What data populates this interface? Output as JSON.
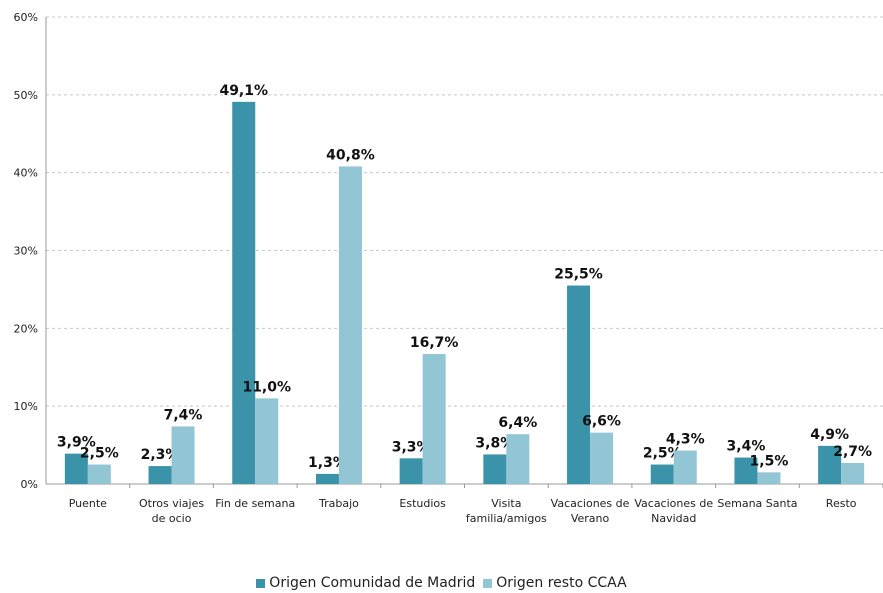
{
  "chart_data": {
    "type": "bar",
    "categories": [
      [
        "Puente"
      ],
      [
        "Otros viajes",
        "de ocio"
      ],
      [
        "Fin de semana"
      ],
      [
        "Trabajo"
      ],
      [
        "Estudios"
      ],
      [
        "Visita",
        "familia/amigos"
      ],
      [
        "Vacaciones de",
        "Verano"
      ],
      [
        "Vacaciones de",
        "Navidad"
      ],
      [
        "Semana Santa"
      ],
      [
        "Resto"
      ]
    ],
    "series": [
      {
        "name": "Origen Comunidad de Madrid",
        "color": "#3a93a8",
        "values": [
          3.9,
          2.3,
          49.1,
          1.3,
          3.3,
          3.8,
          25.5,
          2.5,
          3.4,
          4.9
        ],
        "labels": [
          "3,9%",
          "2,3%",
          "49,1%",
          "1,3%",
          "3,3%",
          "3,8%",
          "25,5%",
          "2,5%",
          "3,4%",
          "4,9%"
        ]
      },
      {
        "name": "Origen resto CCAA",
        "color": "#93c6d5",
        "values": [
          2.5,
          7.4,
          11.0,
          40.8,
          16.7,
          6.4,
          6.6,
          4.3,
          1.5,
          2.7
        ],
        "labels": [
          "2,5%",
          "7,4%",
          "11,0%",
          "40,8%",
          "16,7%",
          "6,4%",
          "6,6%",
          "4,3%",
          "1,5%",
          "2,7%"
        ]
      }
    ],
    "ylim": [
      0,
      60
    ],
    "yticks": [
      "0%",
      "10%",
      "20%",
      "30%",
      "40%",
      "50%",
      "60%"
    ],
    "grid": true,
    "legend_position": "bottom"
  }
}
